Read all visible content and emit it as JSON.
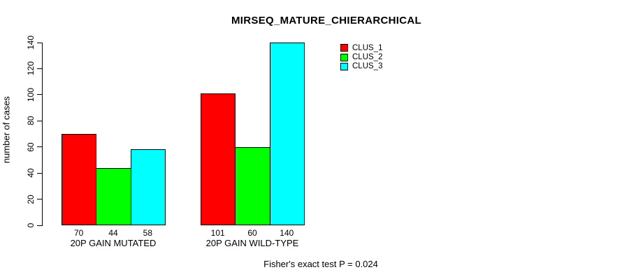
{
  "title": "MIRSEQ_MATURE_CHIERARCHICAL",
  "footer": "Fisher's exact test P = 0.024",
  "chart_data": {
    "type": "bar",
    "title": "MIRSEQ_MATURE_CHIERARCHICAL",
    "xlabel": "",
    "ylabel": "number of cases",
    "ylim": [
      0,
      140
    ],
    "yticks": [
      0,
      20,
      40,
      60,
      80,
      100,
      120,
      140
    ],
    "grid": false,
    "bar_value_labels": true,
    "legend_position": "top-right",
    "categories": [
      "20P GAIN MUTATED",
      "20P GAIN WILD-TYPE"
    ],
    "series": [
      {
        "name": "CLUS_1",
        "color": "#ff0000",
        "values": [
          70,
          101
        ]
      },
      {
        "name": "CLUS_2",
        "color": "#00ff00",
        "values": [
          44,
          60
        ]
      },
      {
        "name": "CLUS_3",
        "color": "#00ffff",
        "values": [
          58,
          140
        ]
      }
    ],
    "annotation": "Fisher's exact test P = 0.024"
  }
}
